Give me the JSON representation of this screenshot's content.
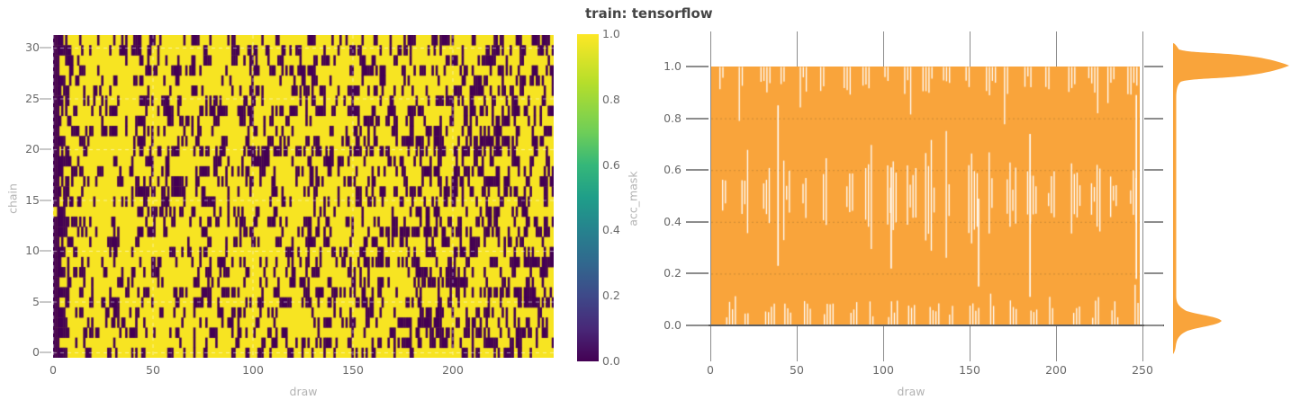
{
  "title": {
    "text": "train: tensorflow"
  },
  "left_plot": {
    "xlabel": "draw",
    "ylabel": "chain",
    "x_ticks": [
      "0",
      "50",
      "100",
      "150",
      "200"
    ],
    "y_ticks": [
      "0",
      "5",
      "10",
      "15",
      "20",
      "25",
      "30"
    ]
  },
  "colorbar": {
    "label": "acc_mask",
    "ticks": [
      "1.0",
      "0.8",
      "0.6",
      "0.4",
      "0.2",
      "0.0"
    ]
  },
  "right_plot": {
    "xlabel": "draw",
    "x_ticks": [
      "0",
      "50",
      "100",
      "150",
      "200",
      "250"
    ],
    "y_ticks": [
      "1.0",
      "0.8",
      "0.6",
      "0.4",
      "0.2",
      "0.0"
    ]
  },
  "colors": {
    "accent_orange": "#f9a43b",
    "viridis_min": "#440154",
    "viridis_max": "#f7e422",
    "tick_label": "#6a6a6a",
    "axis_label": "#b3b3b3",
    "title": "#454545",
    "grid": "#8c8c8c",
    "white_gap": "#ffffff"
  },
  "chart_data": [
    {
      "type": "heatmap",
      "xlabel": "draw",
      "ylabel": "chain",
      "x_range": [
        0,
        249
      ],
      "y_range": [
        0,
        31
      ],
      "n_draws": 250,
      "n_chains": 32,
      "x_ticks": [
        0,
        50,
        100,
        150,
        200
      ],
      "y_ticks": [
        0,
        5,
        10,
        15,
        20,
        25,
        30
      ],
      "colormap": "viridis",
      "colorbar_label": "acc_mask",
      "colorbar_ticks": [
        0.0,
        0.2,
        0.4,
        0.6,
        0.8,
        1.0
      ],
      "values": "binary acceptance mask per (chain, draw): 1 = yellow, 0 = dark purple; ~80% ones overall; draws 0-2 almost entirely 0 (warmup band), zeros slightly denser after draw ~185; dashed light gridlines at ticks",
      "generation": {
        "seed": 1337,
        "warmup_draws": 3,
        "p_dark_warmup": 0.9,
        "early_draws": 8,
        "p_dark_early": 0.42,
        "p_dark_base": 0.15,
        "p_dark_slope": 0.09,
        "tail_start": 185,
        "p_dark_tail_extra": 0.05,
        "run_boost": 0.22
      }
    },
    {
      "type": "area",
      "title": "train: tensorflow",
      "xlabel": "draw",
      "ylabel": "acc_mask",
      "xlim": [
        0,
        250
      ],
      "ylim": [
        0.0,
        1.0
      ],
      "x_ticks": [
        0,
        50,
        100,
        150,
        200,
        250
      ],
      "y_ticks": [
        0.0,
        0.2,
        0.4,
        0.6,
        0.8,
        1.0
      ],
      "fill_color": "#f9a43b",
      "description": "32 overlapping chain traces of acc_mask filling the 0-1 band solid orange; thin white gap lines cluster just below y=1.0, just above y=0.0, and in diamond-shaped clusters around y=0.5 (~every 12 draws); a few tall gaps span the mid range; solid gray vertical gridlines at x ticks extend beyond the band",
      "gaps": {
        "seed": 77,
        "n_groups": 21,
        "long_spikes": [
          {
            "draw": 39,
            "from": 0.23,
            "to": 0.85
          },
          {
            "draw": 105,
            "from": 0.22,
            "to": 0.61
          },
          {
            "draw": 156,
            "from": 0.15,
            "to": 0.49
          },
          {
            "draw": 186,
            "from": 0.11,
            "to": 0.74
          },
          {
            "draw": 248,
            "from": 0.18,
            "to": 0.89
          }
        ]
      },
      "marginal_kde": {
        "orientation": "vertical-right",
        "color": "#f9a43b",
        "peaks": [
          {
            "value": 1.0,
            "rel_height": 1.0
          },
          {
            "value": 0.0,
            "rel_height": 0.4
          }
        ]
      }
    }
  ]
}
